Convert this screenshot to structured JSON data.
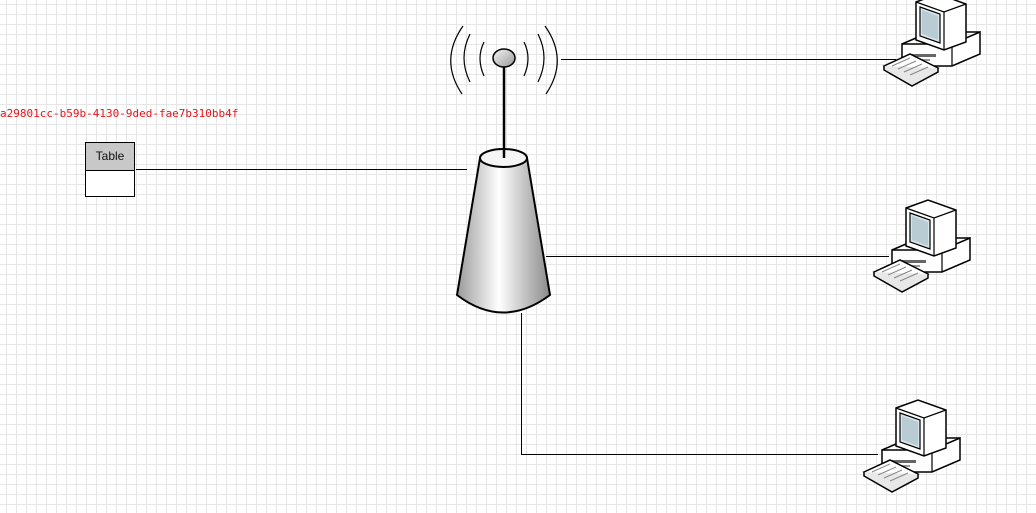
{
  "diagram": {
    "id_label": "a29801cc-b59b-4130-9ded-fae7b310bb4f",
    "table_title": "Table",
    "nodes": [
      {
        "name": "wireless-access-point",
        "icon": "wireless-antenna-icon"
      },
      {
        "name": "hub",
        "icon": "cone-hub-icon"
      },
      {
        "name": "pc-1",
        "icon": "desktop-computer-icon"
      },
      {
        "name": "pc-2",
        "icon": "desktop-computer-icon"
      },
      {
        "name": "pc-3",
        "icon": "desktop-computer-icon"
      }
    ],
    "colors": {
      "id_label": "#e8151a",
      "table_header": "#c8c8c8",
      "grid": "#e6e6e6",
      "stroke": "#000000"
    }
  }
}
